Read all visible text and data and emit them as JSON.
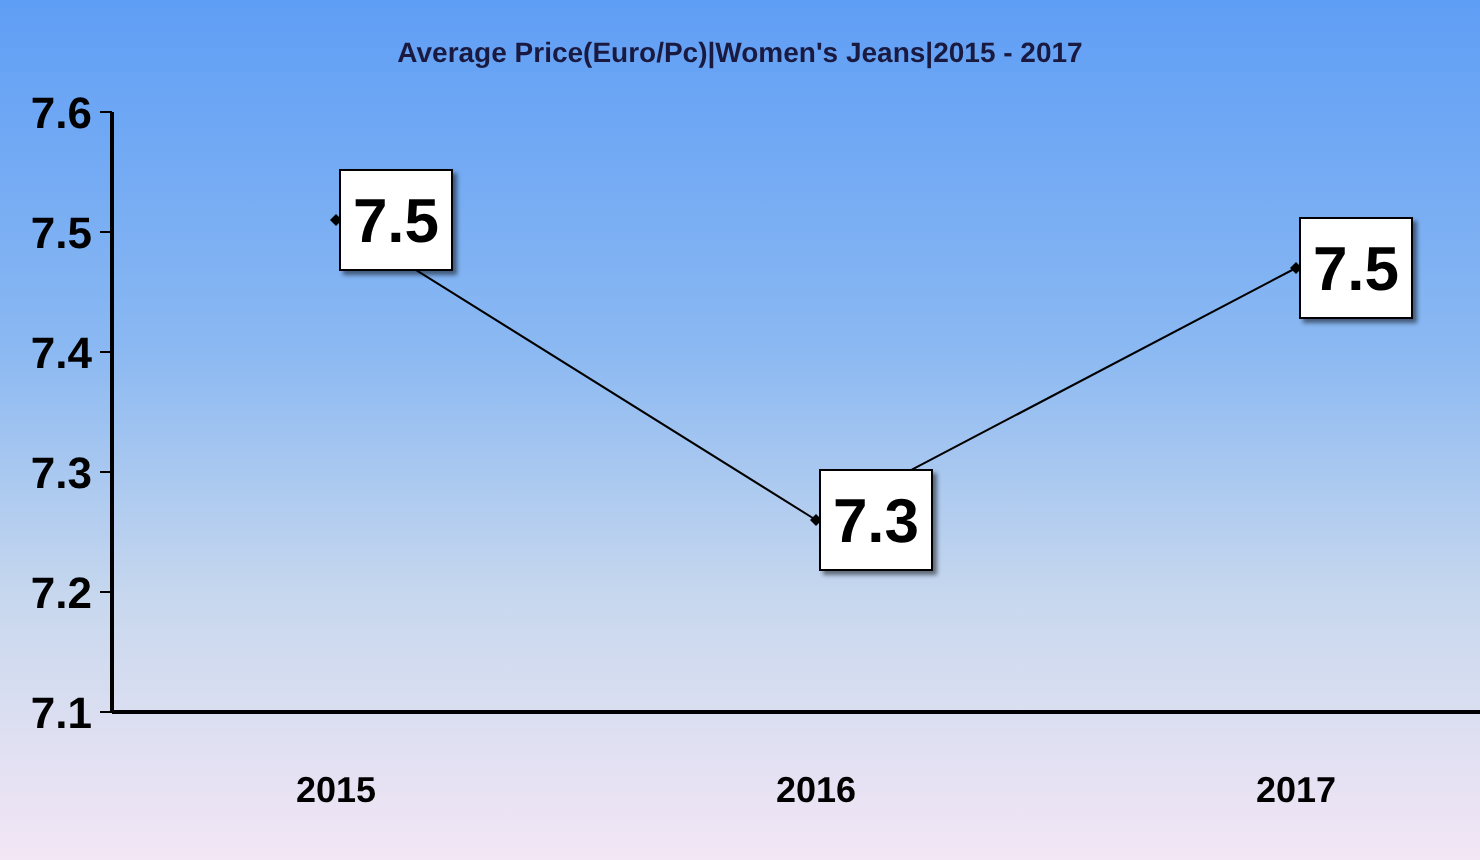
{
  "chart_data": {
    "type": "line",
    "title": "Average Price(Euro/Pc)|Women's Jeans|2015 - 2017",
    "categories": [
      "2015",
      "2016",
      "2017"
    ],
    "series": [
      {
        "color": "#000000",
        "values": [
          7.51,
          7.26,
          7.47
        ],
        "value_labels": [
          "7.5",
          "7.3",
          "7.5"
        ]
      }
    ],
    "ylim": [
      7.1,
      7.6
    ],
    "yticks": [
      7.1,
      7.2,
      7.3,
      7.4,
      7.5,
      7.6
    ],
    "marker": "diamond",
    "grid": false,
    "legend": false
  }
}
